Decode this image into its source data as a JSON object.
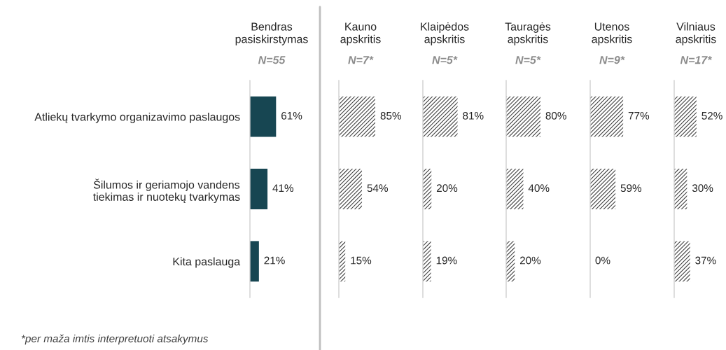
{
  "chart_data": [
    {
      "type": "bar",
      "orientation": "horizontal",
      "title": "Bendras\npasiskirstymas",
      "subtitle": "N=55",
      "categories": [
        "Atliekų tvarkymo organizavimo paslaugos",
        "Šilumos ir geriamojo vandens\ntiekimas ir nuotekų tvarkymas",
        "Kita paslauga"
      ],
      "values": [
        61,
        41,
        21
      ],
      "value_labels": [
        "61%",
        "41%",
        "21%"
      ],
      "color": "#174652",
      "tick_labels": "y",
      "annotations": [
        "*per maža imtis interpretuoti atsakymus"
      ]
    },
    {
      "type": "bar",
      "orientation": "horizontal",
      "title": "Kauno\napskritis",
      "subtitle": "N=7*",
      "categories": [
        null,
        null,
        null
      ],
      "values": [
        85,
        54,
        15
      ],
      "value_labels": [
        "85%",
        "54%",
        "15%"
      ],
      "color": "#404040",
      "tick_labels": false
    },
    {
      "type": "bar",
      "orientation": "horizontal",
      "title": "Klaipėdos\napskritis",
      "subtitle": "N=5*",
      "categories": [
        null,
        null,
        null
      ],
      "values": [
        81,
        20,
        19
      ],
      "value_labels": [
        "81%",
        "20%",
        "19%"
      ],
      "color": "#404040",
      "tick_labels": false
    },
    {
      "type": "bar",
      "orientation": "horizontal",
      "title": "Tauragės\napskritis",
      "subtitle": "N=5*",
      "categories": [
        null,
        null,
        null
      ],
      "values": [
        80,
        40,
        20
      ],
      "value_labels": [
        "80%",
        "40%",
        "20%"
      ],
      "color": "#404040",
      "tick_labels": false
    },
    {
      "type": "bar",
      "orientation": "horizontal",
      "title": "Utenos\napskritis",
      "subtitle": "N=9*",
      "categories": [
        null,
        null,
        null
      ],
      "values": [
        77,
        59,
        0
      ],
      "value_labels": [
        "77%",
        "59%",
        "0%"
      ],
      "color": "#404040",
      "tick_labels": false
    },
    {
      "type": "bar",
      "orientation": "horizontal",
      "title": "Vilniaus\napskritis",
      "subtitle": "N=17*",
      "categories": [
        null,
        null,
        null
      ],
      "values": [
        52,
        30,
        37
      ],
      "value_labels": [
        "52%",
        "30%",
        "37%"
      ],
      "color": "#404040",
      "tick_labels": false
    }
  ]
}
